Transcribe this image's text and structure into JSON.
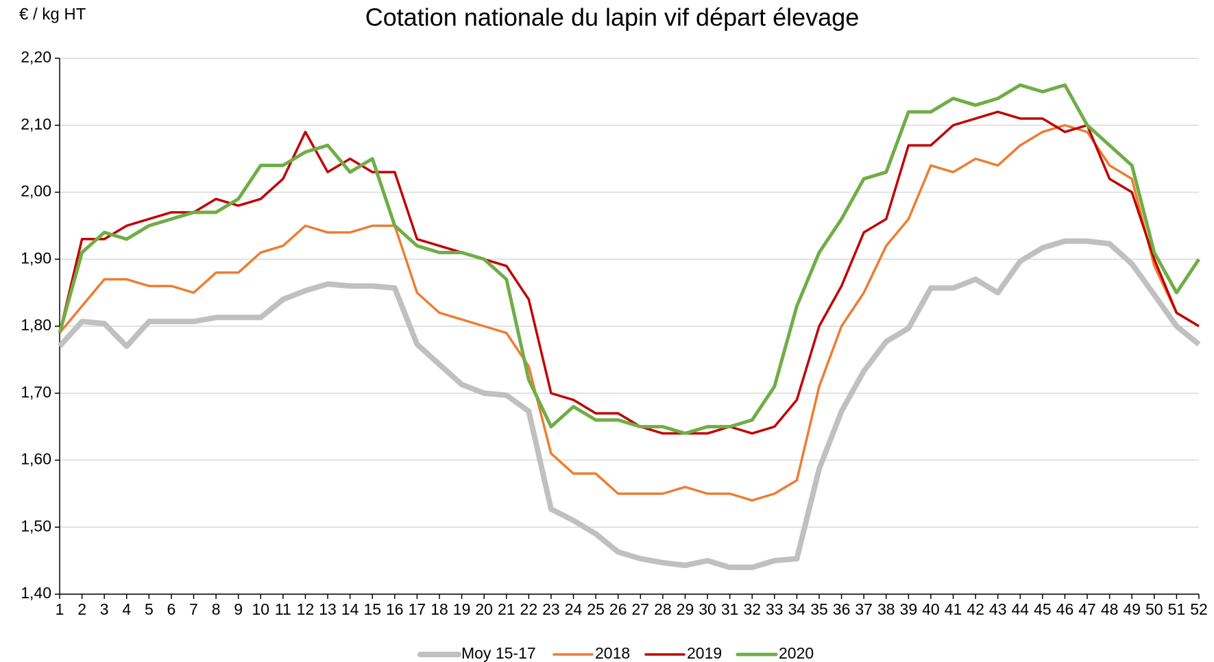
{
  "chart_data": {
    "type": "line",
    "title": "Cotation nationale du lapin vif départ élevage",
    "y_label": "€ / kg HT",
    "categories": [
      "1",
      "2",
      "3",
      "4",
      "5",
      "6",
      "7",
      "8",
      "9",
      "10",
      "11",
      "12",
      "13",
      "14",
      "15",
      "16",
      "17",
      "18",
      "19",
      "20",
      "21",
      "22",
      "23",
      "24",
      "25",
      "26",
      "27",
      "28",
      "29",
      "30",
      "31",
      "32",
      "33",
      "34",
      "35",
      "36",
      "37",
      "38",
      "39",
      "40",
      "41",
      "42",
      "43",
      "44",
      "45",
      "46",
      "47",
      "48",
      "49",
      "50",
      "51",
      "52"
    ],
    "series": [
      {
        "name": "Moy 15-17",
        "color": "#c0c0c0",
        "values": [
          1.77,
          1.807,
          1.804,
          1.77,
          1.807,
          1.807,
          1.807,
          1.813,
          1.813,
          1.813,
          1.84,
          1.853,
          1.863,
          1.86,
          1.86,
          1.857,
          1.773,
          1.743,
          1.713,
          1.7,
          1.697,
          1.673,
          1.527,
          1.51,
          1.49,
          1.463,
          1.453,
          1.447,
          1.443,
          1.45,
          1.44,
          1.44,
          1.45,
          1.453,
          1.587,
          1.673,
          1.733,
          1.777,
          1.797,
          1.857,
          1.857,
          1.87,
          1.85,
          1.897,
          1.917,
          1.927,
          1.927,
          1.923,
          1.893,
          1.847,
          1.8,
          1.773
        ]
      },
      {
        "name": "2018",
        "color": "#ed7d31",
        "values": [
          1.79,
          1.83,
          1.87,
          1.87,
          1.86,
          1.86,
          1.85,
          1.88,
          1.88,
          1.91,
          1.92,
          1.95,
          1.94,
          1.94,
          1.95,
          1.95,
          1.85,
          1.82,
          1.81,
          1.8,
          1.79,
          1.74,
          1.61,
          1.58,
          1.58,
          1.55,
          1.55,
          1.55,
          1.56,
          1.55,
          1.55,
          1.54,
          1.55,
          1.57,
          1.71,
          1.8,
          1.85,
          1.92,
          1.96,
          2.04,
          2.03,
          2.05,
          2.04,
          2.07,
          2.09,
          2.1,
          2.09,
          2.04,
          2.02,
          1.89,
          1.82,
          1.8
        ]
      },
      {
        "name": "2019",
        "color": "#c00000",
        "values": [
          1.79,
          1.93,
          1.93,
          1.95,
          1.96,
          1.97,
          1.97,
          1.99,
          1.98,
          1.99,
          2.02,
          2.09,
          2.03,
          2.05,
          2.03,
          2.03,
          1.93,
          1.92,
          1.91,
          1.9,
          1.89,
          1.84,
          1.7,
          1.69,
          1.67,
          1.67,
          1.65,
          1.64,
          1.64,
          1.64,
          1.65,
          1.64,
          1.65,
          1.69,
          1.8,
          1.86,
          1.94,
          1.96,
          2.07,
          2.07,
          2.1,
          2.11,
          2.12,
          2.11,
          2.11,
          2.09,
          2.1,
          2.02,
          2.0,
          1.9,
          1.82,
          1.8
        ]
      },
      {
        "name": "2020",
        "color": "#70ad47",
        "values": [
          1.79,
          1.91,
          1.94,
          1.93,
          1.95,
          1.96,
          1.97,
          1.97,
          1.99,
          2.04,
          2.04,
          2.06,
          2.07,
          2.03,
          2.05,
          1.95,
          1.92,
          1.91,
          1.91,
          1.9,
          1.87,
          1.72,
          1.65,
          1.68,
          1.66,
          1.66,
          1.65,
          1.65,
          1.64,
          1.65,
          1.65,
          1.66,
          1.71,
          1.83,
          1.91,
          1.96,
          2.02,
          2.03,
          2.12,
          2.12,
          2.14,
          2.13,
          2.14,
          2.16,
          2.15,
          2.16,
          2.1,
          2.07,
          2.04,
          1.91,
          1.85,
          1.9
        ]
      }
    ],
    "ylim": [
      1.4,
      2.2
    ],
    "yticks": [
      {
        "value": 1.4,
        "label": "1,40"
      },
      {
        "value": 1.5,
        "label": "1,50"
      },
      {
        "value": 1.6,
        "label": "1,60"
      },
      {
        "value": 1.7,
        "label": "1,70"
      },
      {
        "value": 1.8,
        "label": "1,80"
      },
      {
        "value": 1.9,
        "label": "1,90"
      },
      {
        "value": 2.0,
        "label": "2,00"
      },
      {
        "value": 2.1,
        "label": "2,10"
      },
      {
        "value": 2.2,
        "label": "2,20"
      }
    ],
    "grid": true,
    "legend": "bottom"
  }
}
